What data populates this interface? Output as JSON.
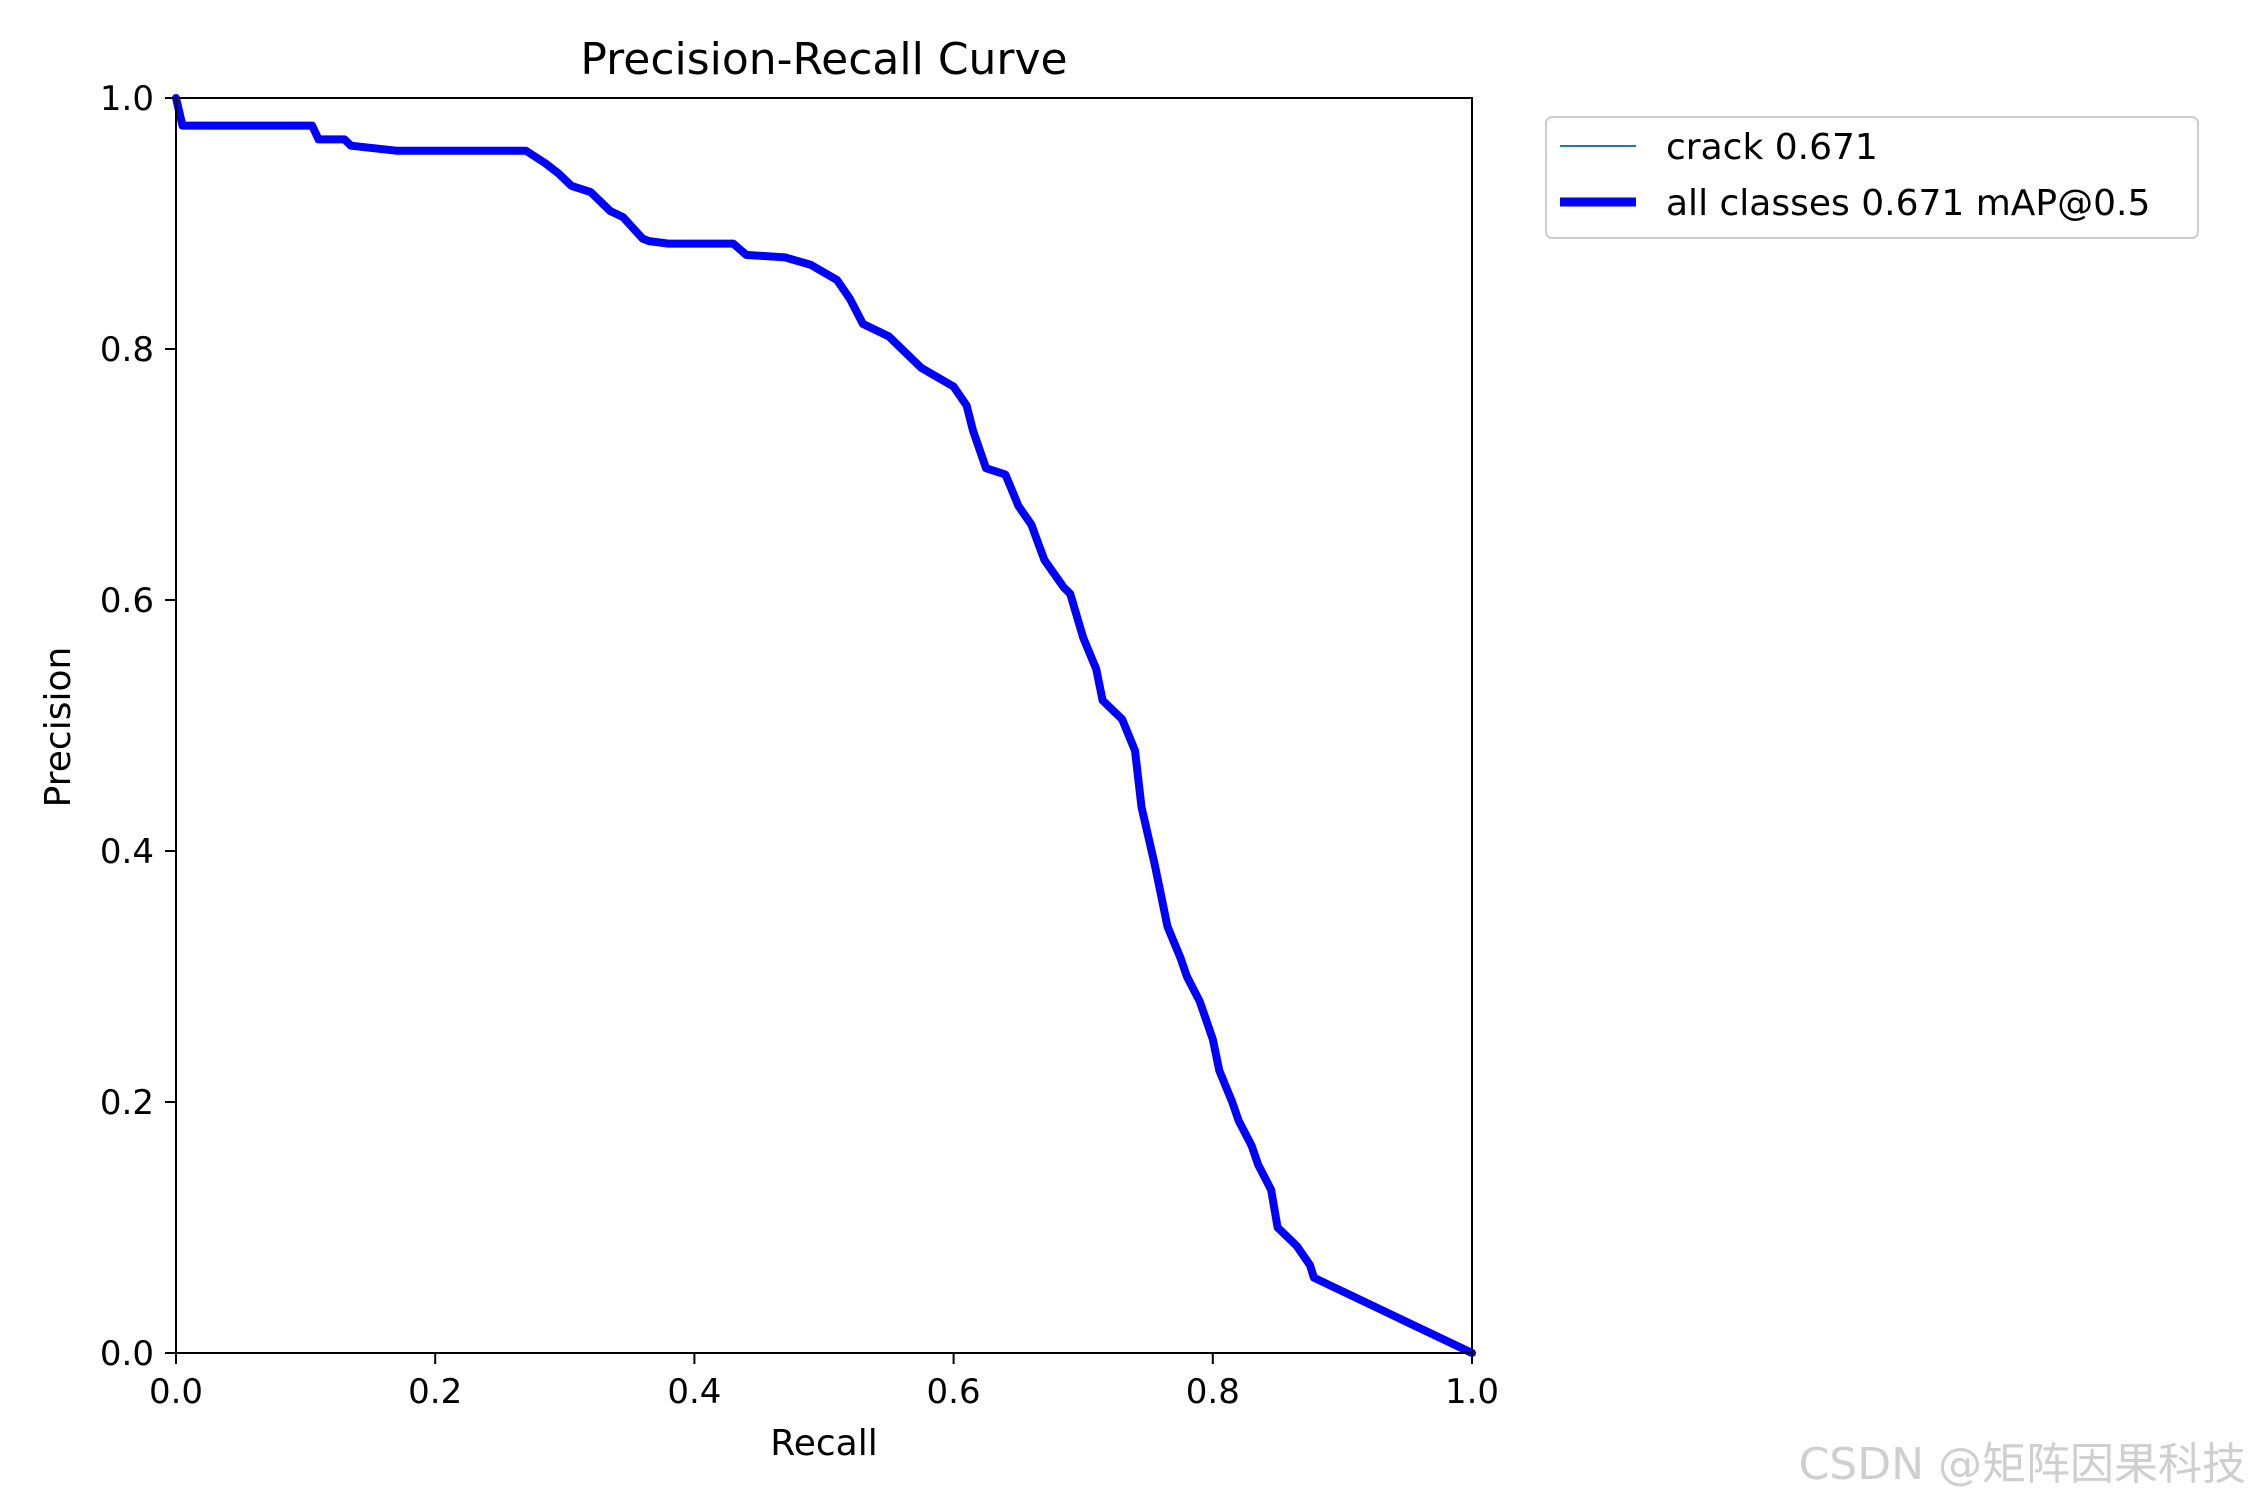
{
  "chart_data": {
    "type": "line",
    "title": "Precision-Recall Curve",
    "xlabel": "Recall",
    "ylabel": "Precision",
    "xlim": [
      0,
      1
    ],
    "ylim": [
      0,
      1
    ],
    "xticks": [
      "0.0",
      "0.2",
      "0.4",
      "0.6",
      "0.8",
      "1.0"
    ],
    "yticks": [
      "0.0",
      "0.2",
      "0.4",
      "0.6",
      "0.8",
      "1.0"
    ],
    "grid": false,
    "legend_position": "outside-top-right",
    "series": [
      {
        "name": "crack 0.671",
        "color": "#1f77b4",
        "style": "thin",
        "x": [
          0.0,
          0.005,
          0.105,
          0.11,
          0.13,
          0.135,
          0.17,
          0.27,
          0.285,
          0.295,
          0.305,
          0.32,
          0.335,
          0.345,
          0.36,
          0.365,
          0.38,
          0.43,
          0.44,
          0.47,
          0.49,
          0.51,
          0.52,
          0.53,
          0.55,
          0.56,
          0.575,
          0.6,
          0.61,
          0.615,
          0.625,
          0.64,
          0.65,
          0.66,
          0.67,
          0.685,
          0.69,
          0.7,
          0.71,
          0.715,
          0.73,
          0.74,
          0.745,
          0.755,
          0.76,
          0.765,
          0.775,
          0.78,
          0.79,
          0.8,
          0.805,
          0.815,
          0.82,
          0.83,
          0.835,
          0.845,
          0.85,
          0.86,
          0.865,
          0.875,
          0.878,
          1.0
        ],
        "y": [
          1.0,
          0.978,
          0.978,
          0.967,
          0.967,
          0.962,
          0.958,
          0.958,
          0.948,
          0.94,
          0.93,
          0.925,
          0.91,
          0.905,
          0.888,
          0.886,
          0.884,
          0.884,
          0.875,
          0.873,
          0.867,
          0.855,
          0.84,
          0.82,
          0.81,
          0.8,
          0.785,
          0.77,
          0.755,
          0.735,
          0.705,
          0.7,
          0.675,
          0.66,
          0.632,
          0.61,
          0.605,
          0.57,
          0.545,
          0.52,
          0.505,
          0.48,
          0.435,
          0.39,
          0.365,
          0.34,
          0.315,
          0.3,
          0.28,
          0.25,
          0.225,
          0.2,
          0.185,
          0.165,
          0.15,
          0.13,
          0.1,
          0.09,
          0.085,
          0.07,
          0.06,
          0.0
        ]
      },
      {
        "name": "all classes 0.671 mAP@0.5",
        "color": "#0000ff",
        "style": "thick",
        "x": [
          0.0,
          0.005,
          0.105,
          0.11,
          0.13,
          0.135,
          0.17,
          0.27,
          0.285,
          0.295,
          0.305,
          0.32,
          0.335,
          0.345,
          0.36,
          0.365,
          0.38,
          0.43,
          0.44,
          0.47,
          0.49,
          0.51,
          0.52,
          0.53,
          0.55,
          0.56,
          0.575,
          0.6,
          0.61,
          0.615,
          0.625,
          0.64,
          0.65,
          0.66,
          0.67,
          0.685,
          0.69,
          0.7,
          0.71,
          0.715,
          0.73,
          0.74,
          0.745,
          0.755,
          0.76,
          0.765,
          0.775,
          0.78,
          0.79,
          0.8,
          0.805,
          0.815,
          0.82,
          0.83,
          0.835,
          0.845,
          0.85,
          0.86,
          0.865,
          0.875,
          0.878,
          1.0
        ],
        "y": [
          1.0,
          0.978,
          0.978,
          0.967,
          0.967,
          0.962,
          0.958,
          0.958,
          0.948,
          0.94,
          0.93,
          0.925,
          0.91,
          0.905,
          0.888,
          0.886,
          0.884,
          0.884,
          0.875,
          0.873,
          0.867,
          0.855,
          0.84,
          0.82,
          0.81,
          0.8,
          0.785,
          0.77,
          0.755,
          0.735,
          0.705,
          0.7,
          0.675,
          0.66,
          0.632,
          0.61,
          0.605,
          0.57,
          0.545,
          0.52,
          0.505,
          0.48,
          0.435,
          0.39,
          0.365,
          0.34,
          0.315,
          0.3,
          0.28,
          0.25,
          0.225,
          0.2,
          0.185,
          0.165,
          0.15,
          0.13,
          0.1,
          0.09,
          0.085,
          0.07,
          0.06,
          0.0
        ]
      }
    ]
  },
  "watermark": "CSDN @矩阵因果科技"
}
